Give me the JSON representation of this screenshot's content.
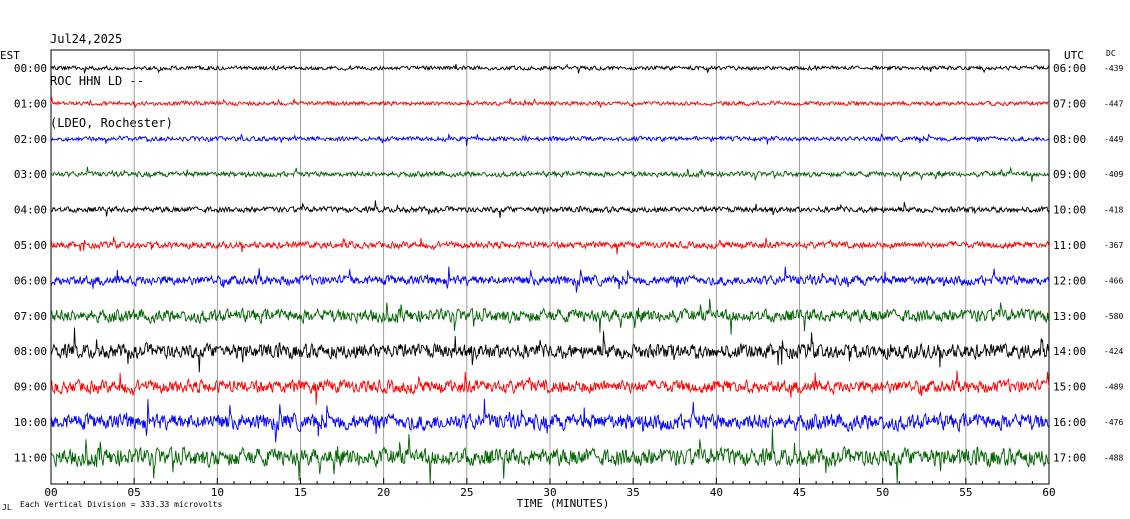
{
  "header": {
    "date": "Jul24,2025",
    "station": "ROC HHN LD --",
    "network": "(LDEO, Rochester)"
  },
  "left_tz": "EST",
  "right_tz": "UTC",
  "dc_label": "DC",
  "footer": {
    "mark": "JL",
    "scale_text": "Each Vertical Division =  333.33 microvolts"
  },
  "colors": [
    "#000000",
    "#ff0000",
    "#0000ff",
    "#006400"
  ],
  "chart_data": {
    "type": "line",
    "title": "",
    "xlabel": "TIME (MINUTES)",
    "xlim": [
      0,
      60
    ],
    "x_ticks": [
      "00",
      "05",
      "10",
      "15",
      "20",
      "25",
      "30",
      "35",
      "40",
      "45",
      "50",
      "55",
      "60"
    ],
    "rows": [
      {
        "est": "00:00",
        "utc": "06:00",
        "dc": "-439",
        "amp": 2.5
      },
      {
        "est": "01:00",
        "utc": "07:00",
        "dc": "-447",
        "amp": 2.5
      },
      {
        "est": "02:00",
        "utc": "08:00",
        "dc": "-449",
        "amp": 2.8
      },
      {
        "est": "03:00",
        "utc": "09:00",
        "dc": "-409",
        "amp": 3.2
      },
      {
        "est": "04:00",
        "utc": "10:00",
        "dc": "-418",
        "amp": 3.5
      },
      {
        "est": "05:00",
        "utc": "11:00",
        "dc": "-367",
        "amp": 4
      },
      {
        "est": "06:00",
        "utc": "12:00",
        "dc": "-466",
        "amp": 6
      },
      {
        "est": "07:00",
        "utc": "13:00",
        "dc": "-580",
        "amp": 8
      },
      {
        "est": "08:00",
        "utc": "14:00",
        "dc": "-424",
        "amp": 9
      },
      {
        "est": "09:00",
        "utc": "15:00",
        "dc": "-489",
        "amp": 8
      },
      {
        "est": "10:00",
        "utc": "16:00",
        "dc": "-476",
        "amp": 10
      },
      {
        "est": "11:00",
        "utc": "17:00",
        "dc": "-488",
        "amp": 11
      }
    ],
    "grid": true
  }
}
